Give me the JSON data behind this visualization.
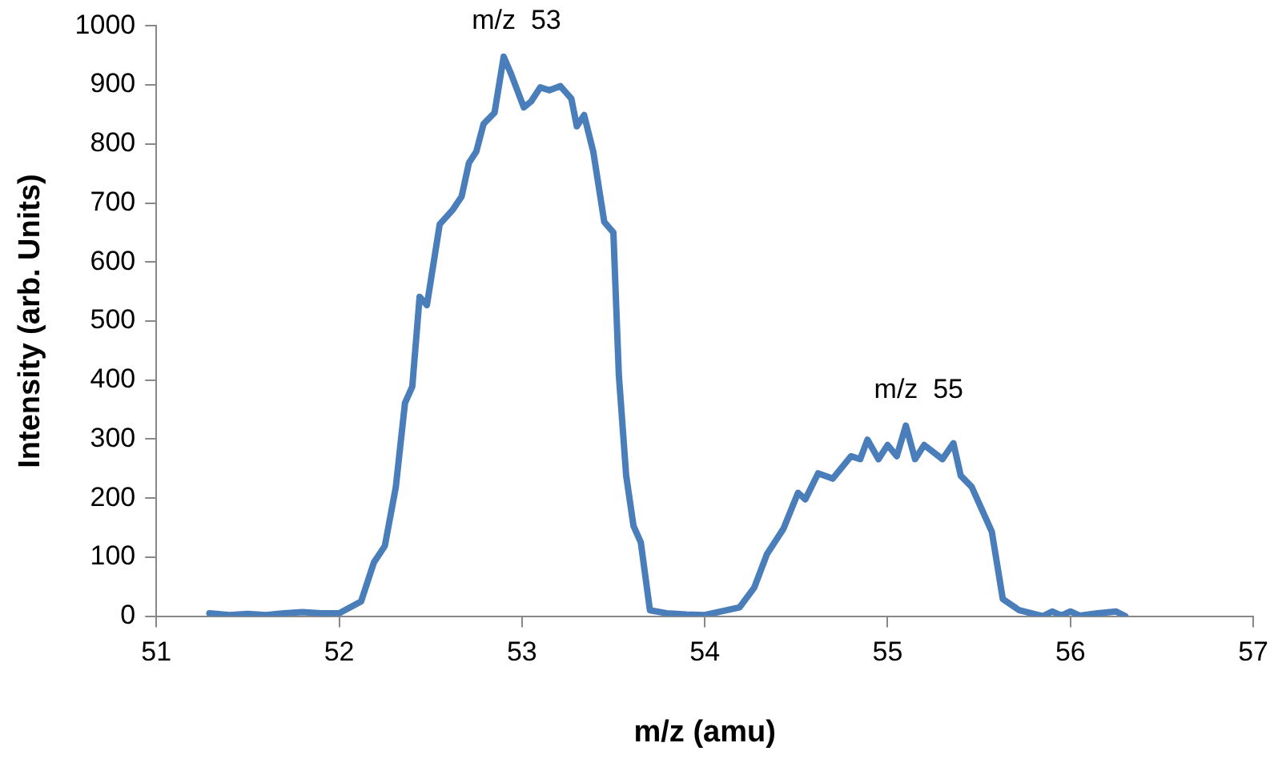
{
  "chart_data": {
    "type": "line",
    "xlabel": "m/z (amu)",
    "ylabel": "Intensity (arb. Units)",
    "xlim": [
      51,
      57
    ],
    "xticks": [
      51,
      52,
      53,
      54,
      55,
      56,
      57
    ],
    "ylim": [
      0,
      1000
    ],
    "yticks": [
      0,
      100,
      200,
      300,
      400,
      500,
      600,
      700,
      800,
      900,
      1000
    ],
    "grid": false,
    "legend": false,
    "marker": "none",
    "line_style": "solid",
    "annotations": [
      {
        "text": "m/z  53",
        "x": 52.9,
        "y": 948
      },
      {
        "text": "m/z  55",
        "x": 55.1,
        "y": 323
      }
    ],
    "series": [
      {
        "color": "#4a7ebb",
        "x": [
          51.29,
          51.4,
          51.5,
          51.6,
          51.7,
          51.8,
          51.9,
          52.0,
          52.12,
          52.19,
          52.25,
          52.31,
          52.36,
          52.4,
          52.44,
          52.48,
          52.55,
          52.62,
          52.67,
          52.71,
          52.75,
          52.79,
          52.85,
          52.9,
          52.94,
          53.01,
          53.05,
          53.1,
          53.15,
          53.21,
          53.27,
          53.3,
          53.34,
          53.39,
          53.45,
          53.5,
          53.53,
          53.57,
          53.61,
          53.65,
          53.7,
          53.79,
          53.9,
          54.0,
          54.19,
          54.27,
          54.34,
          54.43,
          54.51,
          54.55,
          54.62,
          54.7,
          54.8,
          54.85,
          54.89,
          54.95,
          55.0,
          55.05,
          55.1,
          55.15,
          55.2,
          55.3,
          55.36,
          55.4,
          55.46,
          55.57,
          55.63,
          55.72,
          55.85,
          55.9,
          55.95,
          56.0,
          56.05,
          56.15,
          56.25,
          56.3
        ],
        "values": [
          5,
          2,
          4,
          2,
          5,
          7,
          5,
          5,
          25,
          91,
          119,
          219,
          361,
          389,
          541,
          527,
          664,
          688,
          711,
          768,
          787,
          834,
          853,
          948,
          919,
          862,
          872,
          896,
          891,
          898,
          877,
          830,
          849,
          787,
          668,
          650,
          408,
          238,
          153,
          125,
          10,
          5,
          3,
          2,
          15,
          48,
          105,
          148,
          209,
          198,
          242,
          233,
          271,
          266,
          299,
          266,
          290,
          271,
          323,
          266,
          290,
          266,
          293,
          238,
          219,
          143,
          29,
          10,
          0,
          8,
          1,
          8,
          1,
          5,
          8,
          0
        ]
      }
    ]
  }
}
